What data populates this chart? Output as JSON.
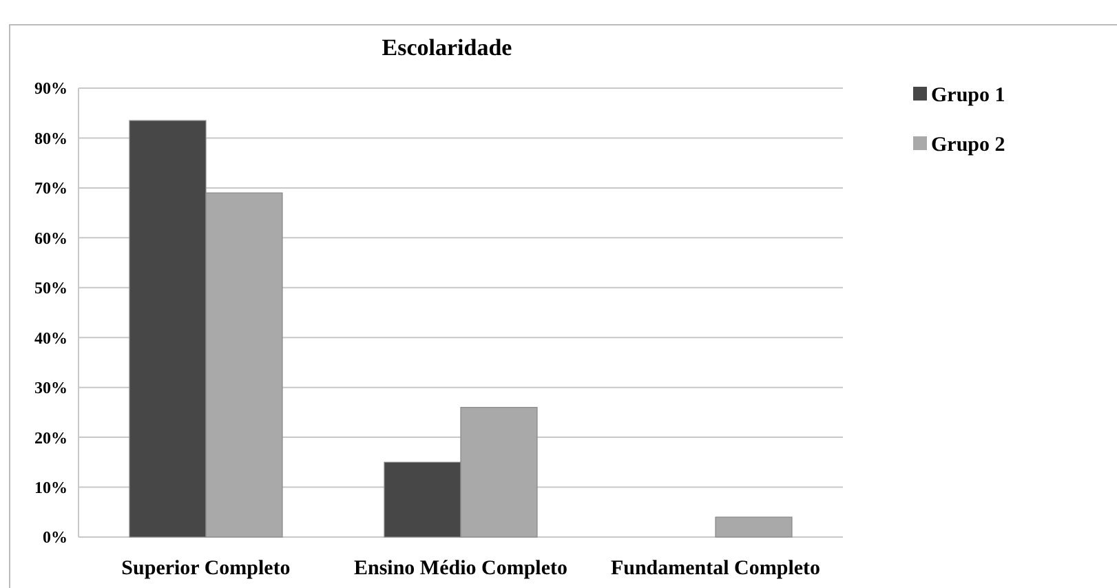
{
  "chart_data": {
    "type": "bar",
    "title": "Escolaridade",
    "categories": [
      "Superior Completo",
      "Ensino Médio Completo",
      "Fundamental Completo"
    ],
    "series": [
      {
        "name": "Grupo 1",
        "color": "#474747",
        "values": [
          83.5,
          15,
          0
        ]
      },
      {
        "name": "Grupo 2",
        "color": "#a9a9a9",
        "values": [
          69,
          26,
          4
        ]
      }
    ],
    "ylim": [
      0,
      90
    ],
    "yticks": [
      {
        "value": 0,
        "label": "0%"
      },
      {
        "value": 10,
        "label": "10%"
      },
      {
        "value": 20,
        "label": "20%"
      },
      {
        "value": 30,
        "label": "30%"
      },
      {
        "value": 40,
        "label": "40%"
      },
      {
        "value": 50,
        "label": "50%"
      },
      {
        "value": 60,
        "label": "60%"
      },
      {
        "value": 70,
        "label": "70%"
      },
      {
        "value": 80,
        "label": "80%"
      },
      {
        "value": 90,
        "label": "90%"
      }
    ],
    "grid": true,
    "legend": "right"
  }
}
